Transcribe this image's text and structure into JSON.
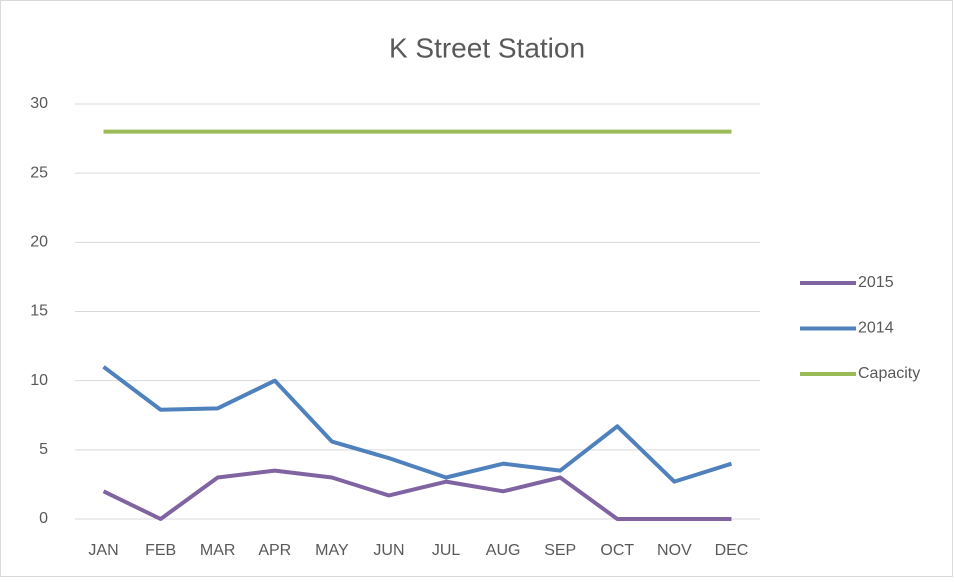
{
  "chart_data": {
    "type": "line",
    "title": "K Street Station",
    "categories": [
      "JAN",
      "FEB",
      "MAR",
      "APR",
      "MAY",
      "JUN",
      "JUL",
      "AUG",
      "SEP",
      "OCT",
      "NOV",
      "DEC"
    ],
    "series": [
      {
        "name": "2015",
        "color": "#8064a2",
        "values": [
          2,
          0,
          3,
          3.5,
          3,
          1.7,
          2.7,
          2,
          3,
          0,
          0,
          0
        ]
      },
      {
        "name": "2014",
        "color": "#4f81bd",
        "values": [
          11,
          7.9,
          8,
          10,
          5.6,
          4.4,
          3,
          4,
          3.5,
          6.7,
          2.7,
          4
        ]
      },
      {
        "name": "Capacity",
        "color": "#9bbb59",
        "values": [
          28,
          28,
          28,
          28,
          28,
          28,
          28,
          28,
          28,
          28,
          28,
          28
        ]
      }
    ],
    "ylim": [
      0,
      30
    ],
    "yticks": [
      0,
      5,
      10,
      15,
      20,
      25,
      30
    ],
    "grid": true,
    "legend": "right"
  }
}
